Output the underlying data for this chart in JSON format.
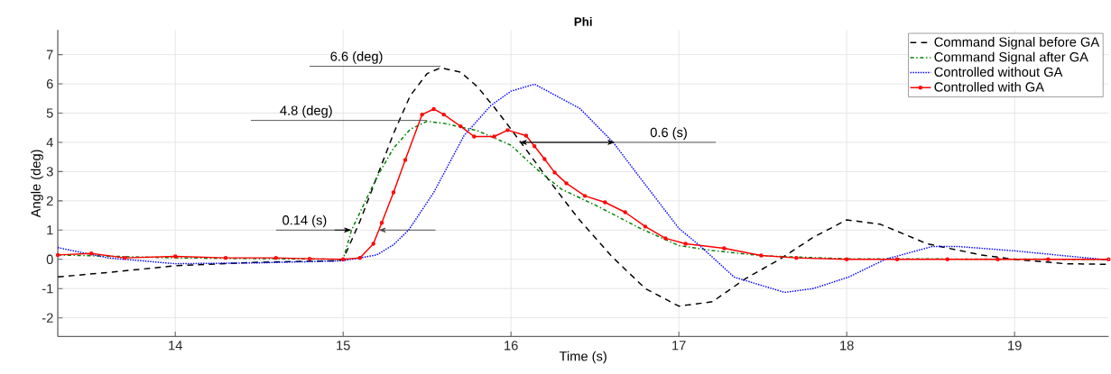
{
  "chart_data": {
    "type": "line",
    "title": "Phi",
    "xlabel": "Time (s)",
    "ylabel": "Angle (deg)",
    "xlim": [
      13.3,
      19.56
    ],
    "ylim": [
      -2.64,
      7.84
    ],
    "xticks": [
      14,
      15,
      16,
      17,
      18,
      19
    ],
    "yticks": [
      -2,
      -1,
      0,
      1,
      2,
      3,
      4,
      5,
      6,
      7
    ],
    "grid": true,
    "legend": "top right",
    "series": [
      {
        "name": "Command Signal before GA",
        "color": "#000000",
        "line_style": "dashed",
        "marker": "none",
        "x": [
          13.3,
          13.6,
          14.0,
          14.5,
          14.95,
          15.0,
          15.1,
          15.2,
          15.3,
          15.4,
          15.5,
          15.58,
          15.7,
          15.8,
          15.9,
          16.0,
          16.2,
          16.4,
          16.6,
          16.8,
          17.0,
          17.2,
          17.4,
          17.6,
          17.8,
          18.0,
          18.2,
          18.48,
          18.8,
          19.0,
          19.3,
          19.56
        ],
        "values": [
          -0.6,
          -0.45,
          -0.22,
          -0.1,
          -0.05,
          0.0,
          1.3,
          2.8,
          4.3,
          5.6,
          6.35,
          6.55,
          6.4,
          5.9,
          5.2,
          4.45,
          2.9,
          1.4,
          0.1,
          -1.0,
          -1.6,
          -1.45,
          -0.65,
          0.0,
          0.75,
          1.35,
          1.2,
          0.53,
          0.15,
          0.0,
          -0.15,
          -0.17
        ]
      },
      {
        "name": "Command Signal after GA",
        "color": "#008000",
        "line_style": "dashdot",
        "marker": "none",
        "x": [
          13.3,
          14.0,
          15.0,
          15.05,
          15.1,
          15.2,
          15.3,
          15.4,
          15.5,
          15.6,
          15.8,
          16.0,
          16.15,
          16.3,
          16.5,
          16.77,
          17.0,
          17.2,
          17.5,
          18.0,
          19.56
        ],
        "values": [
          0.15,
          0.05,
          0.0,
          1.0,
          1.6,
          2.8,
          3.8,
          4.45,
          4.72,
          4.65,
          4.4,
          3.9,
          3.1,
          2.4,
          1.86,
          1.06,
          0.47,
          0.3,
          0.12,
          0.02,
          0.0
        ]
      },
      {
        "name": "Controlled without GA",
        "color": "#0000ff",
        "line_style": "dotted",
        "marker": "none",
        "x": [
          13.3,
          13.6,
          14.0,
          14.5,
          15.0,
          15.2,
          15.3,
          15.39,
          15.54,
          15.72,
          15.88,
          16.0,
          16.14,
          16.41,
          16.61,
          16.81,
          17.0,
          17.13,
          17.33,
          17.63,
          17.8,
          18.01,
          18.23,
          18.51,
          18.66,
          19.0,
          19.3,
          19.56
        ],
        "values": [
          0.4,
          0.05,
          -0.15,
          -0.12,
          -0.05,
          0.15,
          0.5,
          1.0,
          2.29,
          4.23,
          5.26,
          5.75,
          5.99,
          5.16,
          3.99,
          2.48,
          1.06,
          0.44,
          -0.61,
          -1.13,
          -1.0,
          -0.61,
          0.0,
          0.44,
          0.44,
          0.29,
          0.12,
          -0.02
        ]
      },
      {
        "name": "Controlled with GA",
        "color": "#ff0000",
        "line_style": "solid",
        "marker": "circle",
        "x": [
          13.3,
          13.5,
          13.7,
          14.0,
          14.3,
          14.6,
          14.8,
          15.0,
          15.1,
          15.18,
          15.23,
          15.3,
          15.37,
          15.47,
          15.54,
          15.6,
          15.7,
          15.78,
          15.9,
          15.98,
          16.09,
          16.14,
          16.2,
          16.26,
          16.33,
          16.44,
          16.56,
          16.68,
          16.8,
          16.92,
          17.04,
          17.27,
          17.49,
          17.7,
          18.0,
          18.3,
          18.6,
          18.9,
          19.2,
          19.56
        ],
        "values": [
          0.15,
          0.2,
          0.05,
          0.1,
          0.05,
          0.05,
          0.02,
          0.0,
          0.05,
          0.53,
          1.25,
          2.29,
          3.4,
          4.95,
          5.14,
          4.95,
          4.55,
          4.2,
          4.2,
          4.42,
          4.23,
          3.87,
          3.43,
          2.97,
          2.6,
          2.17,
          1.95,
          1.61,
          1.12,
          0.72,
          0.53,
          0.38,
          0.13,
          0.05,
          0.0,
          0.0,
          0.0,
          0.0,
          0.0,
          0.0
        ]
      }
    ],
    "ref_lines": [
      {
        "axis": "y",
        "value": 6.6,
        "label": "6.6 (deg)",
        "color": "#4c4c4c"
      },
      {
        "axis": "y",
        "value": 4.75,
        "label": "4.8 (deg)",
        "color": "#4c4c4c"
      }
    ],
    "annotations": [
      {
        "text": "0.14 (s)",
        "x": 15.05,
        "y": 1
      },
      {
        "text": "0.6 (s)",
        "x": 16.62,
        "y": 4
      }
    ]
  }
}
